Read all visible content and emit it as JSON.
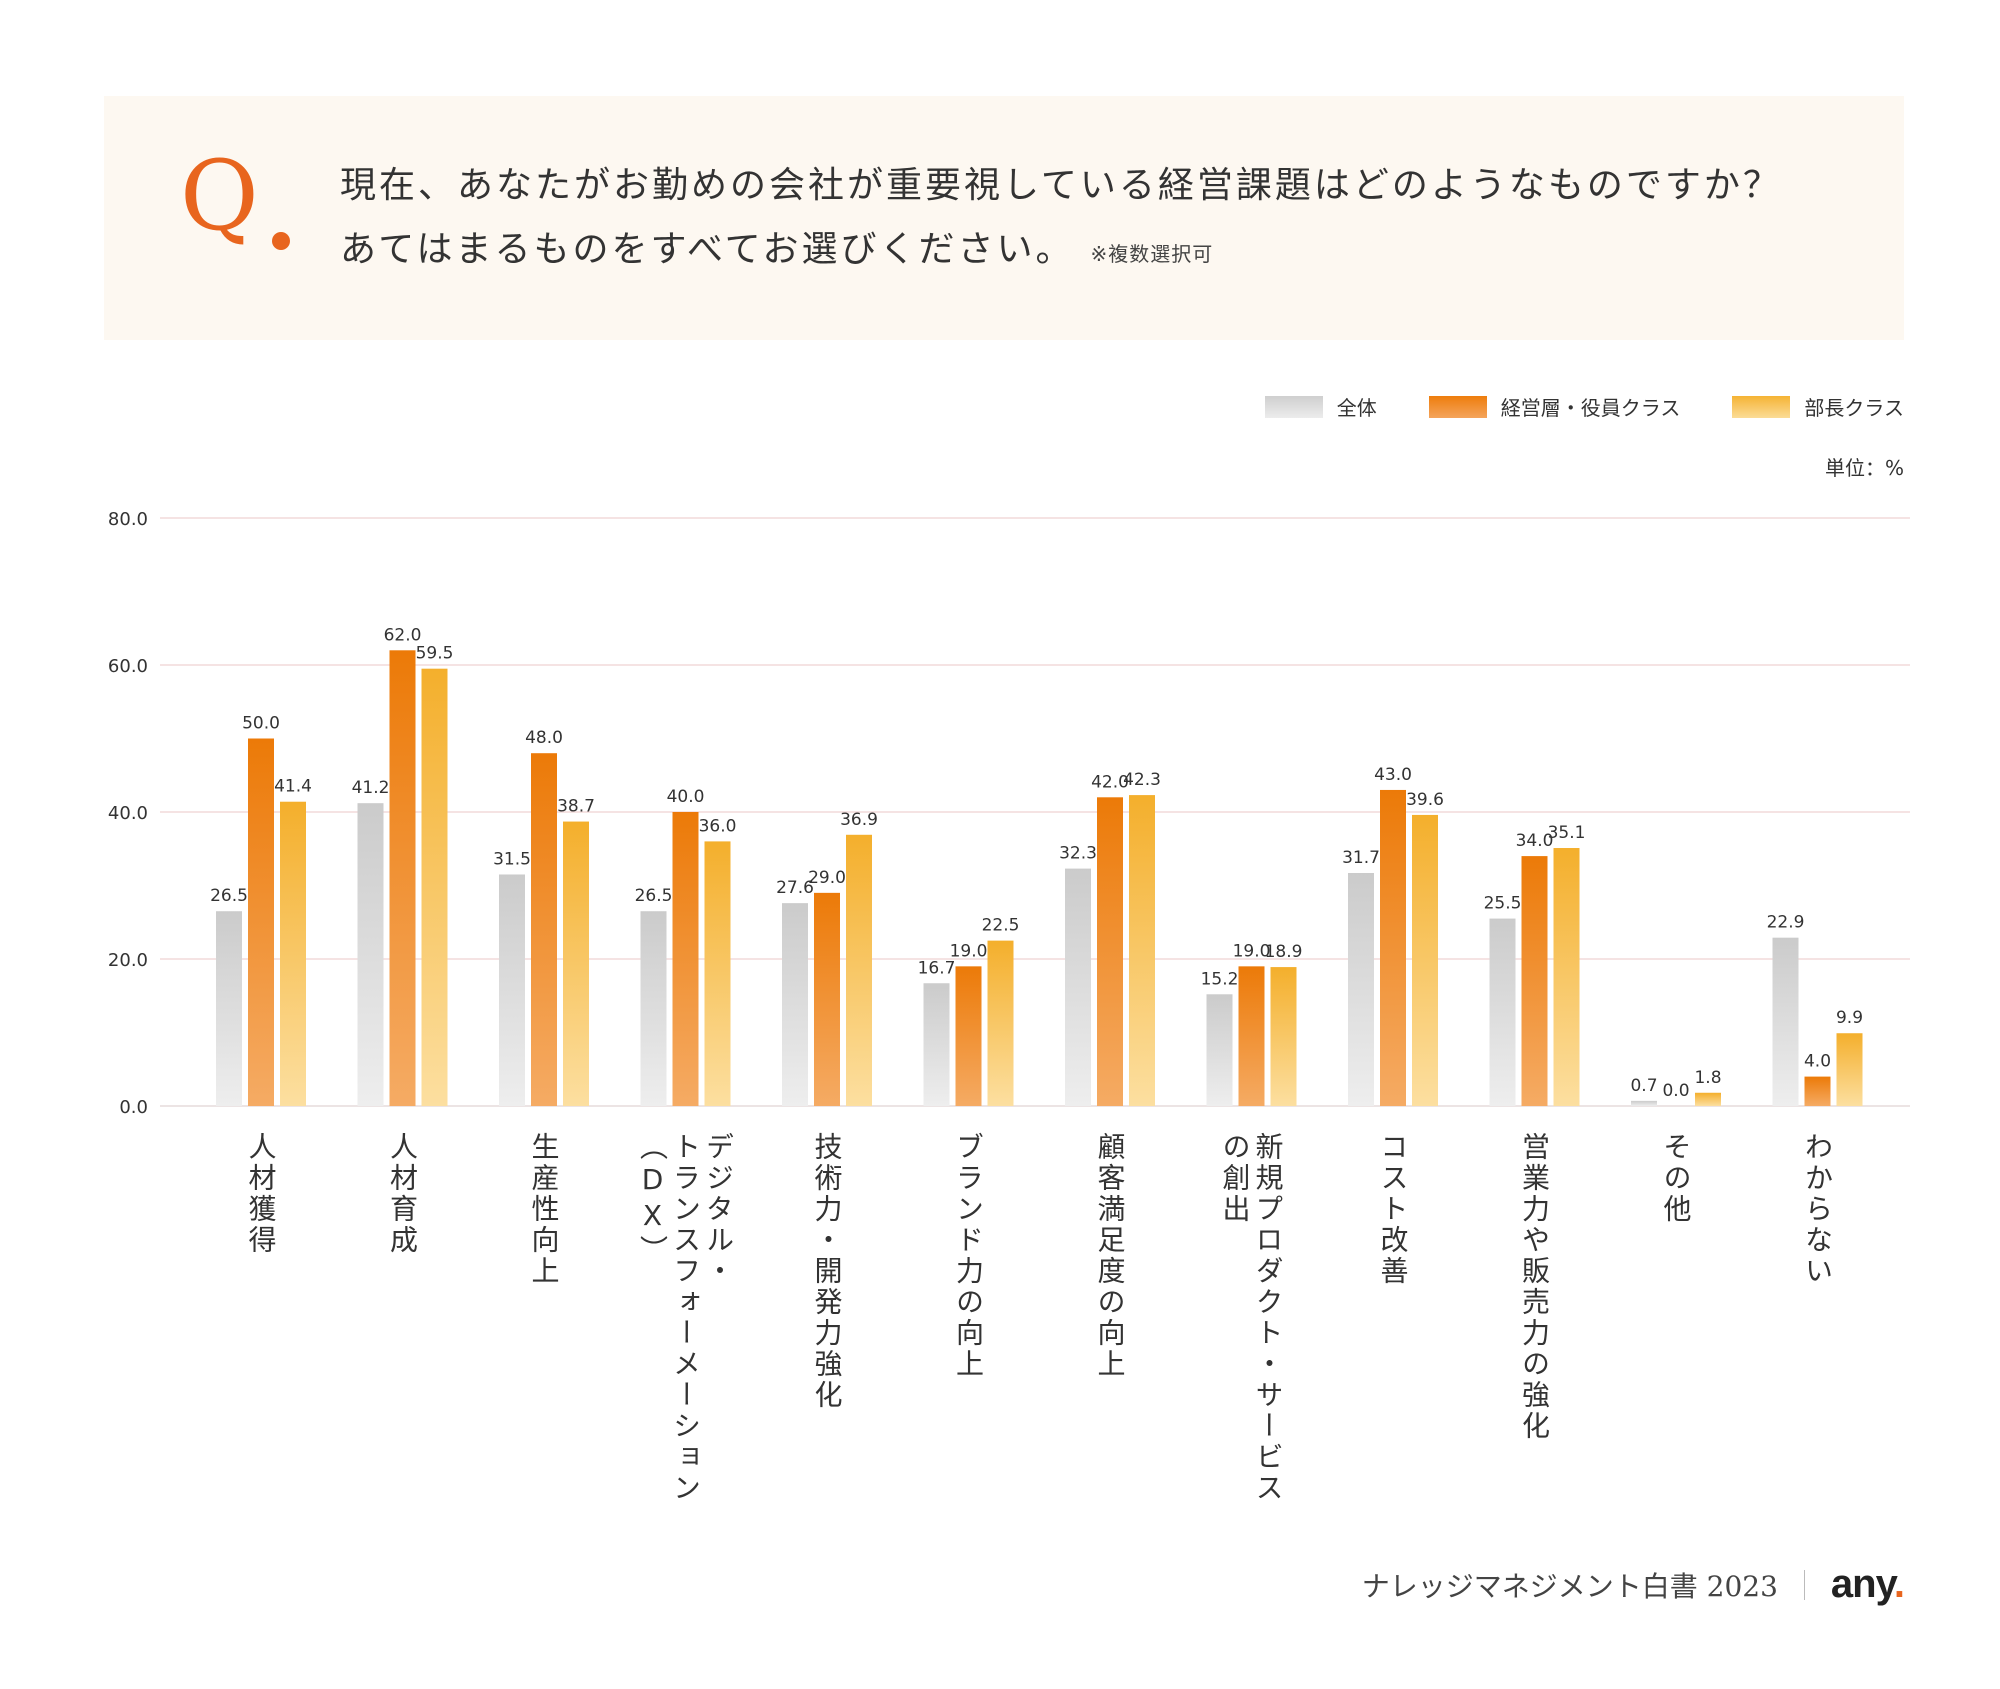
{
  "question": {
    "mark": "Q",
    "line1": "現在、あなたがお勤めの会社が重要視している経営課題はどのようなものですか？",
    "line2": "あてはまるものをすべてお選びください。",
    "note": "※複数選択可"
  },
  "unit_label": "単位：%",
  "footer": {
    "source": "ナレッジマネジメント白書 2023",
    "logo_text": "any",
    "logo_dot": "."
  },
  "colors": {
    "accent": "#e8651e",
    "series_all": "#cfcfcf",
    "series_exec": "#ee7d0c",
    "series_manager": "#f5b334",
    "grid": "#f2dada"
  },
  "chart_data": {
    "type": "bar",
    "ylim": [
      0,
      80
    ],
    "yticks": [
      "0.0",
      "20.0",
      "40.0",
      "60.0",
      "80.0"
    ],
    "grid": true,
    "legend_position": "top-right",
    "categories": [
      [
        "人材獲得"
      ],
      [
        "人材育成"
      ],
      [
        "生産性向上"
      ],
      [
        "デジタル・",
        "トランスフォーメーション",
        "（DX）"
      ],
      [
        "技術力・開発力強化"
      ],
      [
        "ブランド力の向上"
      ],
      [
        "顧客満足度の向上"
      ],
      [
        "新規プロダクト・サービス",
        "の創出"
      ],
      [
        "コスト改善"
      ],
      [
        "営業力や販売力の強化"
      ],
      [
        "その他"
      ],
      [
        "わからない"
      ]
    ],
    "series": [
      {
        "name": "全体",
        "values": [
          26.5,
          41.2,
          31.5,
          26.5,
          27.6,
          16.7,
          32.3,
          15.2,
          31.7,
          25.5,
          0.7,
          22.9
        ]
      },
      {
        "name": "経営層・役員クラス",
        "values": [
          50.0,
          62.0,
          48.0,
          40.0,
          29.0,
          19.0,
          42.0,
          19.0,
          43.0,
          34.0,
          0.0,
          4.0
        ]
      },
      {
        "name": "部長クラス",
        "values": [
          41.4,
          59.5,
          38.7,
          36.0,
          36.9,
          22.5,
          42.3,
          18.9,
          39.6,
          35.1,
          1.8,
          9.9
        ]
      }
    ]
  }
}
